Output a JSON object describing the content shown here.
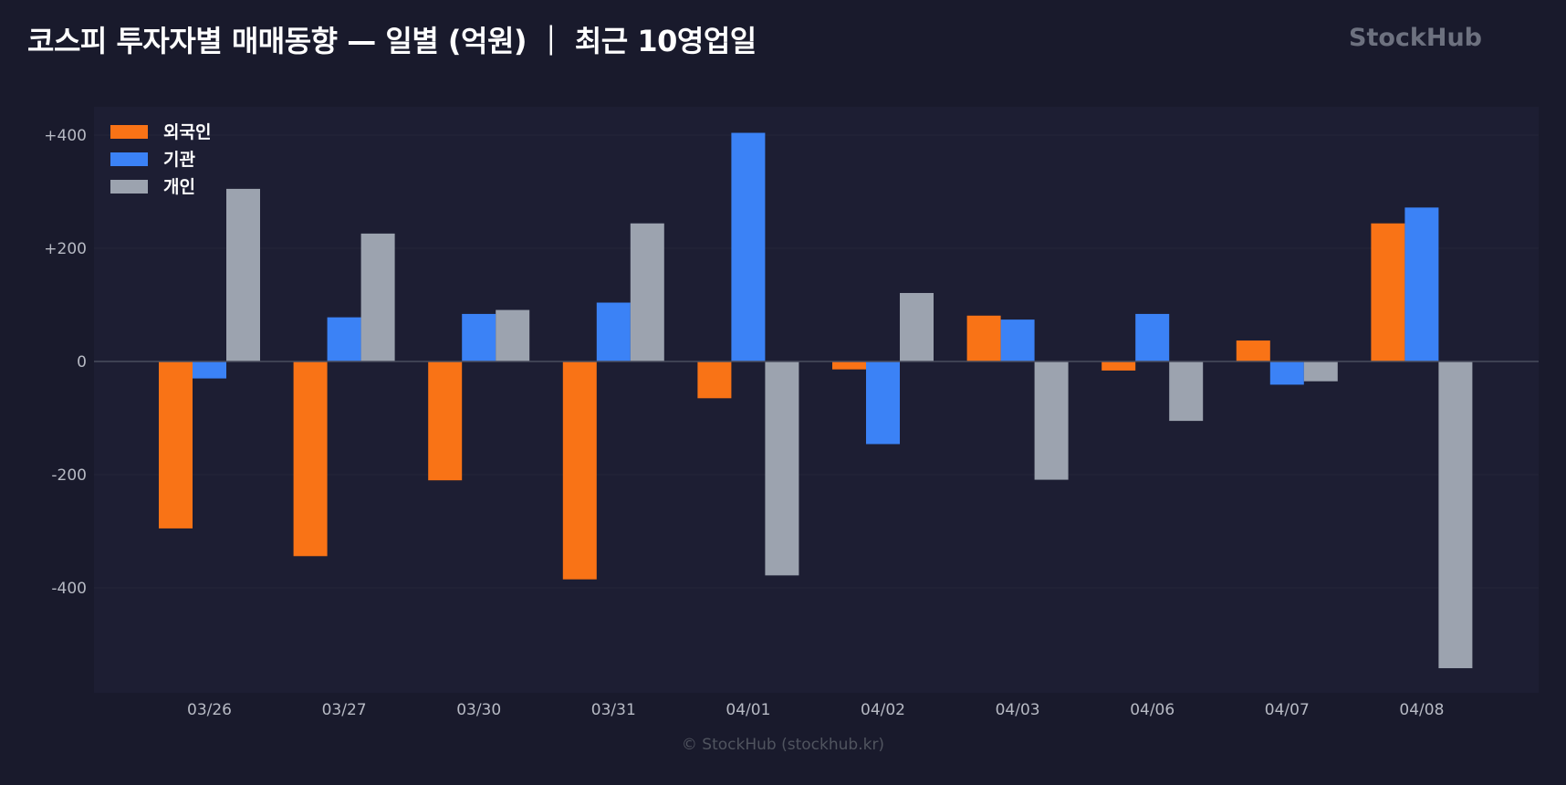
{
  "header": {
    "title": "코스피 투자자별 매매동향 — 일별 (억원) ｜ 최근 10영업일",
    "brand": "StockHub"
  },
  "footer": {
    "text": "© StockHub (stockhub.kr)"
  },
  "colors": {
    "background": "#191a2c",
    "plot_background": "#1d1e33",
    "foreign": "#f97316",
    "institution": "#3b82f6",
    "individual": "#9ca3af",
    "gridline": "#252739",
    "zero_line": "#4a4d5e"
  },
  "chart_data": {
    "type": "bar",
    "title": "코스피 투자자별 매매동향 — 일별 (억원) ｜ 최근 10영업일",
    "xlabel": "",
    "ylabel": "",
    "categories": [
      "03/26",
      "03/27",
      "03/30",
      "03/31",
      "04/01",
      "04/02",
      "04/03",
      "04/06",
      "04/07",
      "04/08"
    ],
    "series": [
      {
        "name": "외국인",
        "color": "#f97316",
        "values": [
          -295,
          -344,
          -210,
          -385,
          -65,
          -14,
          81,
          -16,
          37,
          244
        ]
      },
      {
        "name": "기관",
        "color": "#3b82f6",
        "values": [
          -30,
          78,
          84,
          104,
          404,
          -146,
          74,
          84,
          -41,
          272
        ]
      },
      {
        "name": "개인",
        "color": "#9ca3af",
        "values": [
          305,
          226,
          91,
          244,
          -378,
          121,
          -209,
          -105,
          -35,
          -542
        ]
      }
    ],
    "ylim": [
      -588,
      450
    ],
    "yticks": [
      400,
      200,
      0,
      -200,
      -400
    ],
    "ytick_labels": [
      "+400",
      "+200",
      "0",
      "-200",
      "-400"
    ],
    "grid": true,
    "legend_position": "top-left"
  }
}
